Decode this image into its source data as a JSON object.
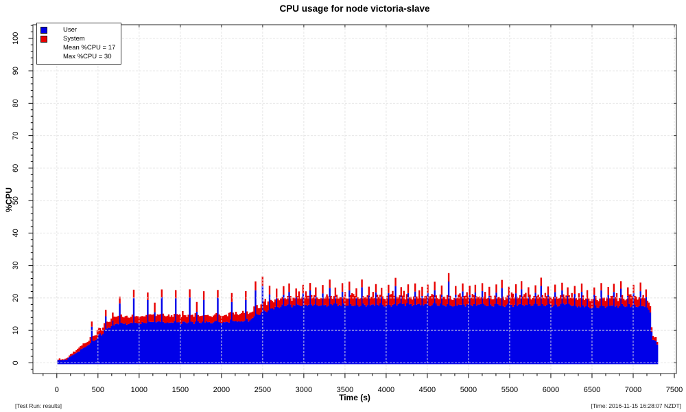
{
  "header": {
    "title": "CPU usage for node victoria-slave"
  },
  "footer": {
    "left": "[Test Run: results]",
    "right": "[Time: 2016-11-15 16:28:07 NZDT]"
  },
  "legend": {
    "stats": [
      "Mean %CPU = 17",
      "Max %CPU = 30"
    ]
  },
  "chart_data": {
    "type": "area",
    "stacked": true,
    "title": "CPU usage for node victoria-slave",
    "xlabel": "Time (s)",
    "ylabel": "%CPU",
    "grid": true,
    "legend_position": "top-left",
    "xlim": [
      -290,
      7525
    ],
    "ylim": [
      -3.3,
      104.2
    ],
    "x_major_ticks": [
      0,
      500,
      1000,
      1500,
      2000,
      2500,
      3000,
      3500,
      4000,
      4500,
      5000,
      5500,
      6000,
      6500,
      7000,
      7500
    ],
    "y_major_ticks": [
      0,
      10,
      20,
      30,
      40,
      50,
      60,
      70,
      80,
      90,
      100
    ],
    "x_minor_divisions": 3,
    "y_minor_step": 2,
    "mean_pct_cpu": 17,
    "max_pct_cpu": 30,
    "legend_stats": [
      "Mean %CPU = 17",
      "Max %CPU = 30"
    ],
    "series": [
      {
        "name": "User",
        "color": "#0000e8"
      },
      {
        "name": "System",
        "color": "#e80000"
      }
    ],
    "sample_interval_s": 17,
    "baseline_points": [
      [
        17,
        0.8,
        0.2
      ],
      [
        120,
        1.0,
        0.3
      ],
      [
        150,
        1.7,
        0.4
      ],
      [
        200,
        2.6,
        0.7
      ],
      [
        255,
        3.3,
        0.9
      ],
      [
        310,
        4.4,
        1.1
      ],
      [
        365,
        5.2,
        1.3
      ],
      [
        420,
        6.1,
        1.4
      ],
      [
        480,
        7.2,
        1.5
      ],
      [
        540,
        8.7,
        1.7
      ],
      [
        600,
        10.3,
        1.8
      ],
      [
        660,
        11.2,
        1.9
      ],
      [
        730,
        11.8,
        2.0
      ],
      [
        850,
        12.1,
        2.0
      ],
      [
        1200,
        12.4,
        2.0
      ],
      [
        1700,
        12.4,
        2.0
      ],
      [
        2150,
        12.7,
        2.0
      ],
      [
        2330,
        13.1,
        2.1
      ],
      [
        2430,
        14.4,
        2.2
      ],
      [
        2540,
        15.9,
        2.2
      ],
      [
        2650,
        17.0,
        2.2
      ],
      [
        2750,
        17.5,
        2.2
      ],
      [
        3300,
        17.6,
        2.2
      ],
      [
        4300,
        17.8,
        2.2
      ],
      [
        5300,
        17.6,
        2.2
      ],
      [
        6250,
        17.7,
        2.2
      ],
      [
        6450,
        16.9,
        2.1
      ],
      [
        6650,
        17.3,
        2.2
      ],
      [
        7050,
        17.5,
        2.2
      ],
      [
        7185,
        17.0,
        2.2
      ],
      [
        7215,
        15.0,
        2.0
      ],
      [
        7230,
        6.8,
        1.2
      ],
      [
        7292,
        6.4,
        1.0
      ],
      [
        7300,
        0.7,
        0.2
      ],
      [
        7310,
        0.0,
        0.0
      ]
    ],
    "spike_points": [
      [
        420,
        11.3,
        1.6
      ],
      [
        505,
        8.6,
        1.9
      ],
      [
        590,
        14.3,
        2.1
      ],
      [
        675,
        13.0,
        2.3
      ],
      [
        760,
        18.4,
        2.2
      ],
      [
        930,
        19.9,
        2.3
      ],
      [
        1100,
        19.4,
        2.5
      ],
      [
        1185,
        15.6,
        2.8
      ],
      [
        1270,
        20.4,
        2.3
      ],
      [
        1440,
        19.7,
        2.5
      ],
      [
        1610,
        20.2,
        2.4
      ],
      [
        1695,
        15.8,
        3.0
      ],
      [
        1780,
        19.5,
        2.6
      ],
      [
        1950,
        20.1,
        2.4
      ],
      [
        2120,
        18.9,
        2.8
      ],
      [
        2290,
        19.4,
        2.6
      ],
      [
        2420,
        22.3,
        2.6
      ],
      [
        2505,
        23.9,
        2.9
      ],
      [
        2590,
        21.3,
        2.5
      ],
      [
        2670,
        19.9,
        3.0
      ],
      [
        2750,
        21.0,
        2.5
      ],
      [
        2830,
        21.9,
        2.6
      ],
      [
        2910,
        20.4,
        2.8
      ],
      [
        2990,
        21.4,
        2.5
      ],
      [
        3070,
        22.4,
        2.4
      ],
      [
        3150,
        20.7,
        2.7
      ],
      [
        3230,
        21.5,
        2.5
      ],
      [
        3310,
        22.9,
        2.4
      ],
      [
        3390,
        20.5,
        2.8
      ],
      [
        3470,
        21.7,
        2.5
      ],
      [
        3550,
        22.3,
        2.6
      ],
      [
        3630,
        20.3,
        2.9
      ],
      [
        3710,
        23.3,
        2.4
      ],
      [
        3790,
        20.9,
        2.6
      ],
      [
        3870,
        21.9,
        2.5
      ],
      [
        3950,
        20.5,
        2.8
      ],
      [
        4030,
        21.3,
        2.6
      ],
      [
        4110,
        23.7,
        2.5
      ],
      [
        4190,
        20.7,
        2.7
      ],
      [
        4270,
        21.5,
        2.5
      ],
      [
        4350,
        22.1,
        2.6
      ],
      [
        4430,
        20.4,
        2.8
      ],
      [
        4510,
        21.7,
        2.5
      ],
      [
        4590,
        22.5,
        2.5
      ],
      [
        4670,
        20.9,
        2.7
      ],
      [
        4767,
        24.9,
        2.7
      ],
      [
        4850,
        21.1,
        2.6
      ],
      [
        4930,
        21.9,
        2.5
      ],
      [
        5010,
        20.7,
        2.8
      ],
      [
        5090,
        21.5,
        2.5
      ],
      [
        5170,
        22.3,
        2.5
      ],
      [
        5250,
        20.5,
        2.8
      ],
      [
        5330,
        21.7,
        2.5
      ],
      [
        5410,
        23.1,
        2.4
      ],
      [
        5490,
        20.7,
        2.7
      ],
      [
        5570,
        21.3,
        2.6
      ],
      [
        5650,
        22.7,
        2.4
      ],
      [
        5730,
        20.5,
        2.8
      ],
      [
        5810,
        21.5,
        2.5
      ],
      [
        5890,
        23.5,
        2.4
      ],
      [
        5970,
        20.8,
        2.7
      ],
      [
        6050,
        21.7,
        2.5
      ],
      [
        6130,
        22.3,
        2.5
      ],
      [
        6210,
        20.5,
        2.8
      ],
      [
        6290,
        21.4,
        2.5
      ],
      [
        6370,
        21.9,
        2.6
      ],
      [
        6450,
        19.7,
        2.8
      ],
      [
        6530,
        21.1,
        2.5
      ],
      [
        6610,
        22.5,
        2.4
      ],
      [
        6690,
        20.7,
        2.7
      ],
      [
        6770,
        21.7,
        2.5
      ],
      [
        6850,
        22.9,
        2.4
      ],
      [
        6930,
        20.6,
        2.7
      ],
      [
        7010,
        21.5,
        2.5
      ],
      [
        7090,
        22.1,
        2.5
      ],
      [
        7160,
        20.4,
        2.6
      ]
    ]
  }
}
